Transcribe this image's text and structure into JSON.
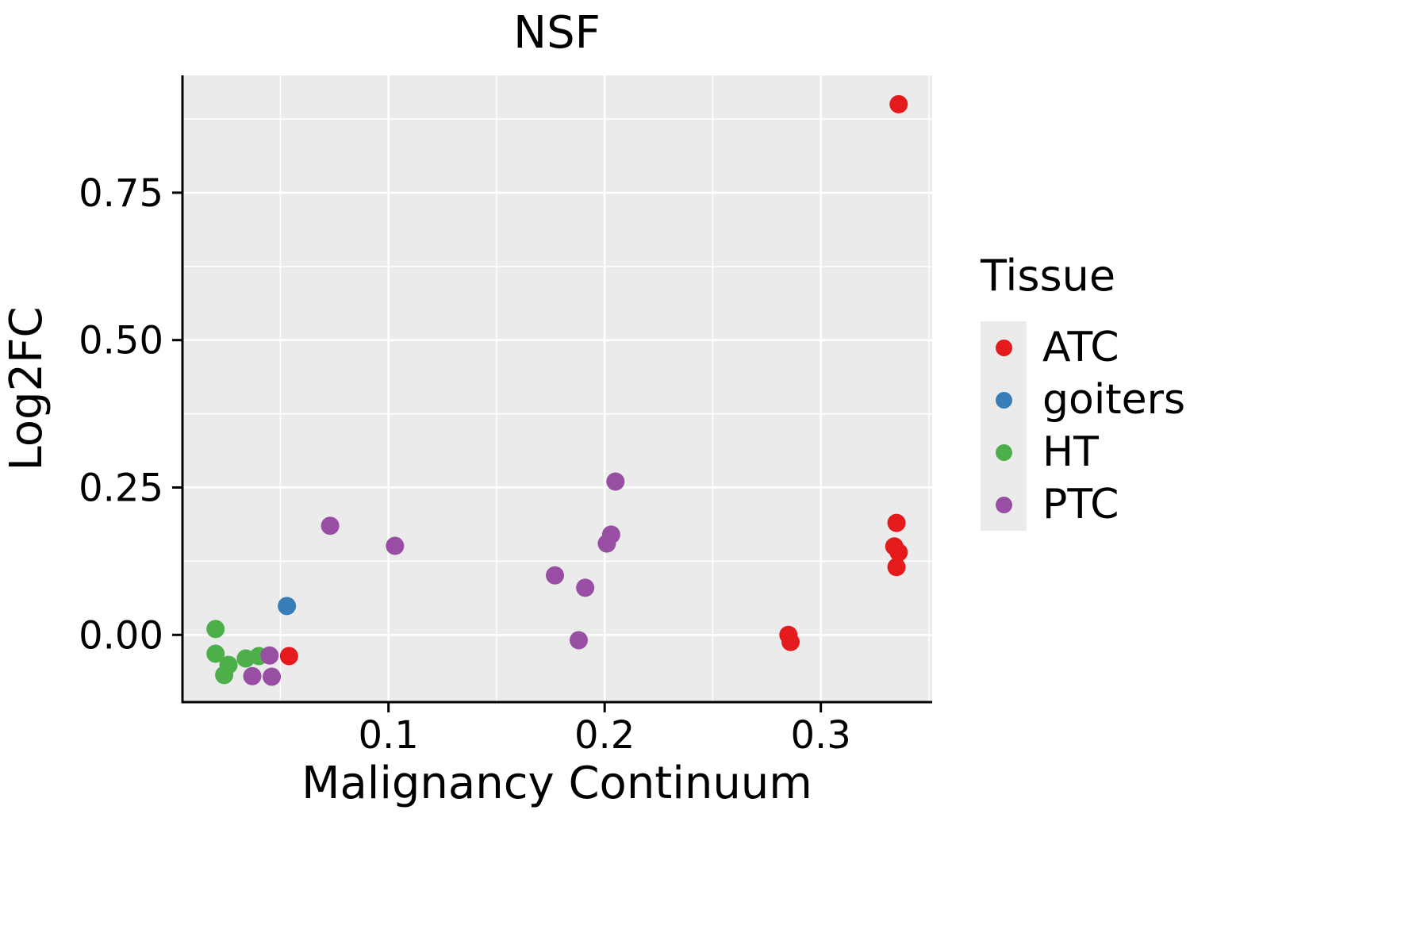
{
  "chart_data": {
    "type": "scatter",
    "title": "NSF",
    "xlabel": "Malignancy Continuum",
    "ylabel": "Log2FC",
    "legend_title": "Tissue",
    "legend_position": "right",
    "grid": true,
    "panel_background": "#EBEBEB",
    "grid_color": "#FFFFFF",
    "axis_color": "#000000",
    "xlim": [
      0.0047,
      0.3515
    ],
    "ylim": [
      -0.114,
      0.949
    ],
    "x_ticks": [
      0.1,
      0.2,
      0.3
    ],
    "x_tick_labels": [
      "0.1",
      "0.2",
      "0.3"
    ],
    "x_minor_ticks": [
      0.05,
      0.15,
      0.25,
      0.35
    ],
    "y_ticks": [
      0,
      0.25,
      0.5,
      0.75
    ],
    "y_tick_labels": [
      "0.00",
      "0.25",
      "0.50",
      "0.75"
    ],
    "y_minor_ticks": [
      0.125,
      0.375,
      0.625,
      0.875
    ],
    "series": [
      {
        "name": "ATC",
        "color": "#E41A1C",
        "points": [
          [
            0.336,
            0.9
          ],
          [
            0.335,
            0.19
          ],
          [
            0.334,
            0.15
          ],
          [
            0.336,
            0.14
          ],
          [
            0.335,
            0.115
          ],
          [
            0.285,
            0.0
          ],
          [
            0.286,
            -0.012
          ],
          [
            0.054,
            -0.036
          ]
        ]
      },
      {
        "name": "goiters",
        "color": "#377EB8",
        "points": [
          [
            0.053,
            0.049
          ]
        ]
      },
      {
        "name": "HT",
        "color": "#4DAF4A",
        "points": [
          [
            0.02,
            0.01
          ],
          [
            0.02,
            -0.032
          ],
          [
            0.024,
            -0.068
          ],
          [
            0.026,
            -0.051
          ],
          [
            0.034,
            -0.04
          ],
          [
            0.04,
            -0.036
          ]
        ]
      },
      {
        "name": "PTC",
        "color": "#984EA3",
        "points": [
          [
            0.045,
            -0.035
          ],
          [
            0.037,
            -0.07
          ],
          [
            0.046,
            -0.071
          ],
          [
            0.073,
            0.185
          ],
          [
            0.103,
            0.151
          ],
          [
            0.177,
            0.101
          ],
          [
            0.191,
            0.08
          ],
          [
            0.188,
            -0.009
          ],
          [
            0.201,
            0.155
          ],
          [
            0.203,
            0.17
          ],
          [
            0.205,
            0.26
          ]
        ]
      }
    ]
  }
}
